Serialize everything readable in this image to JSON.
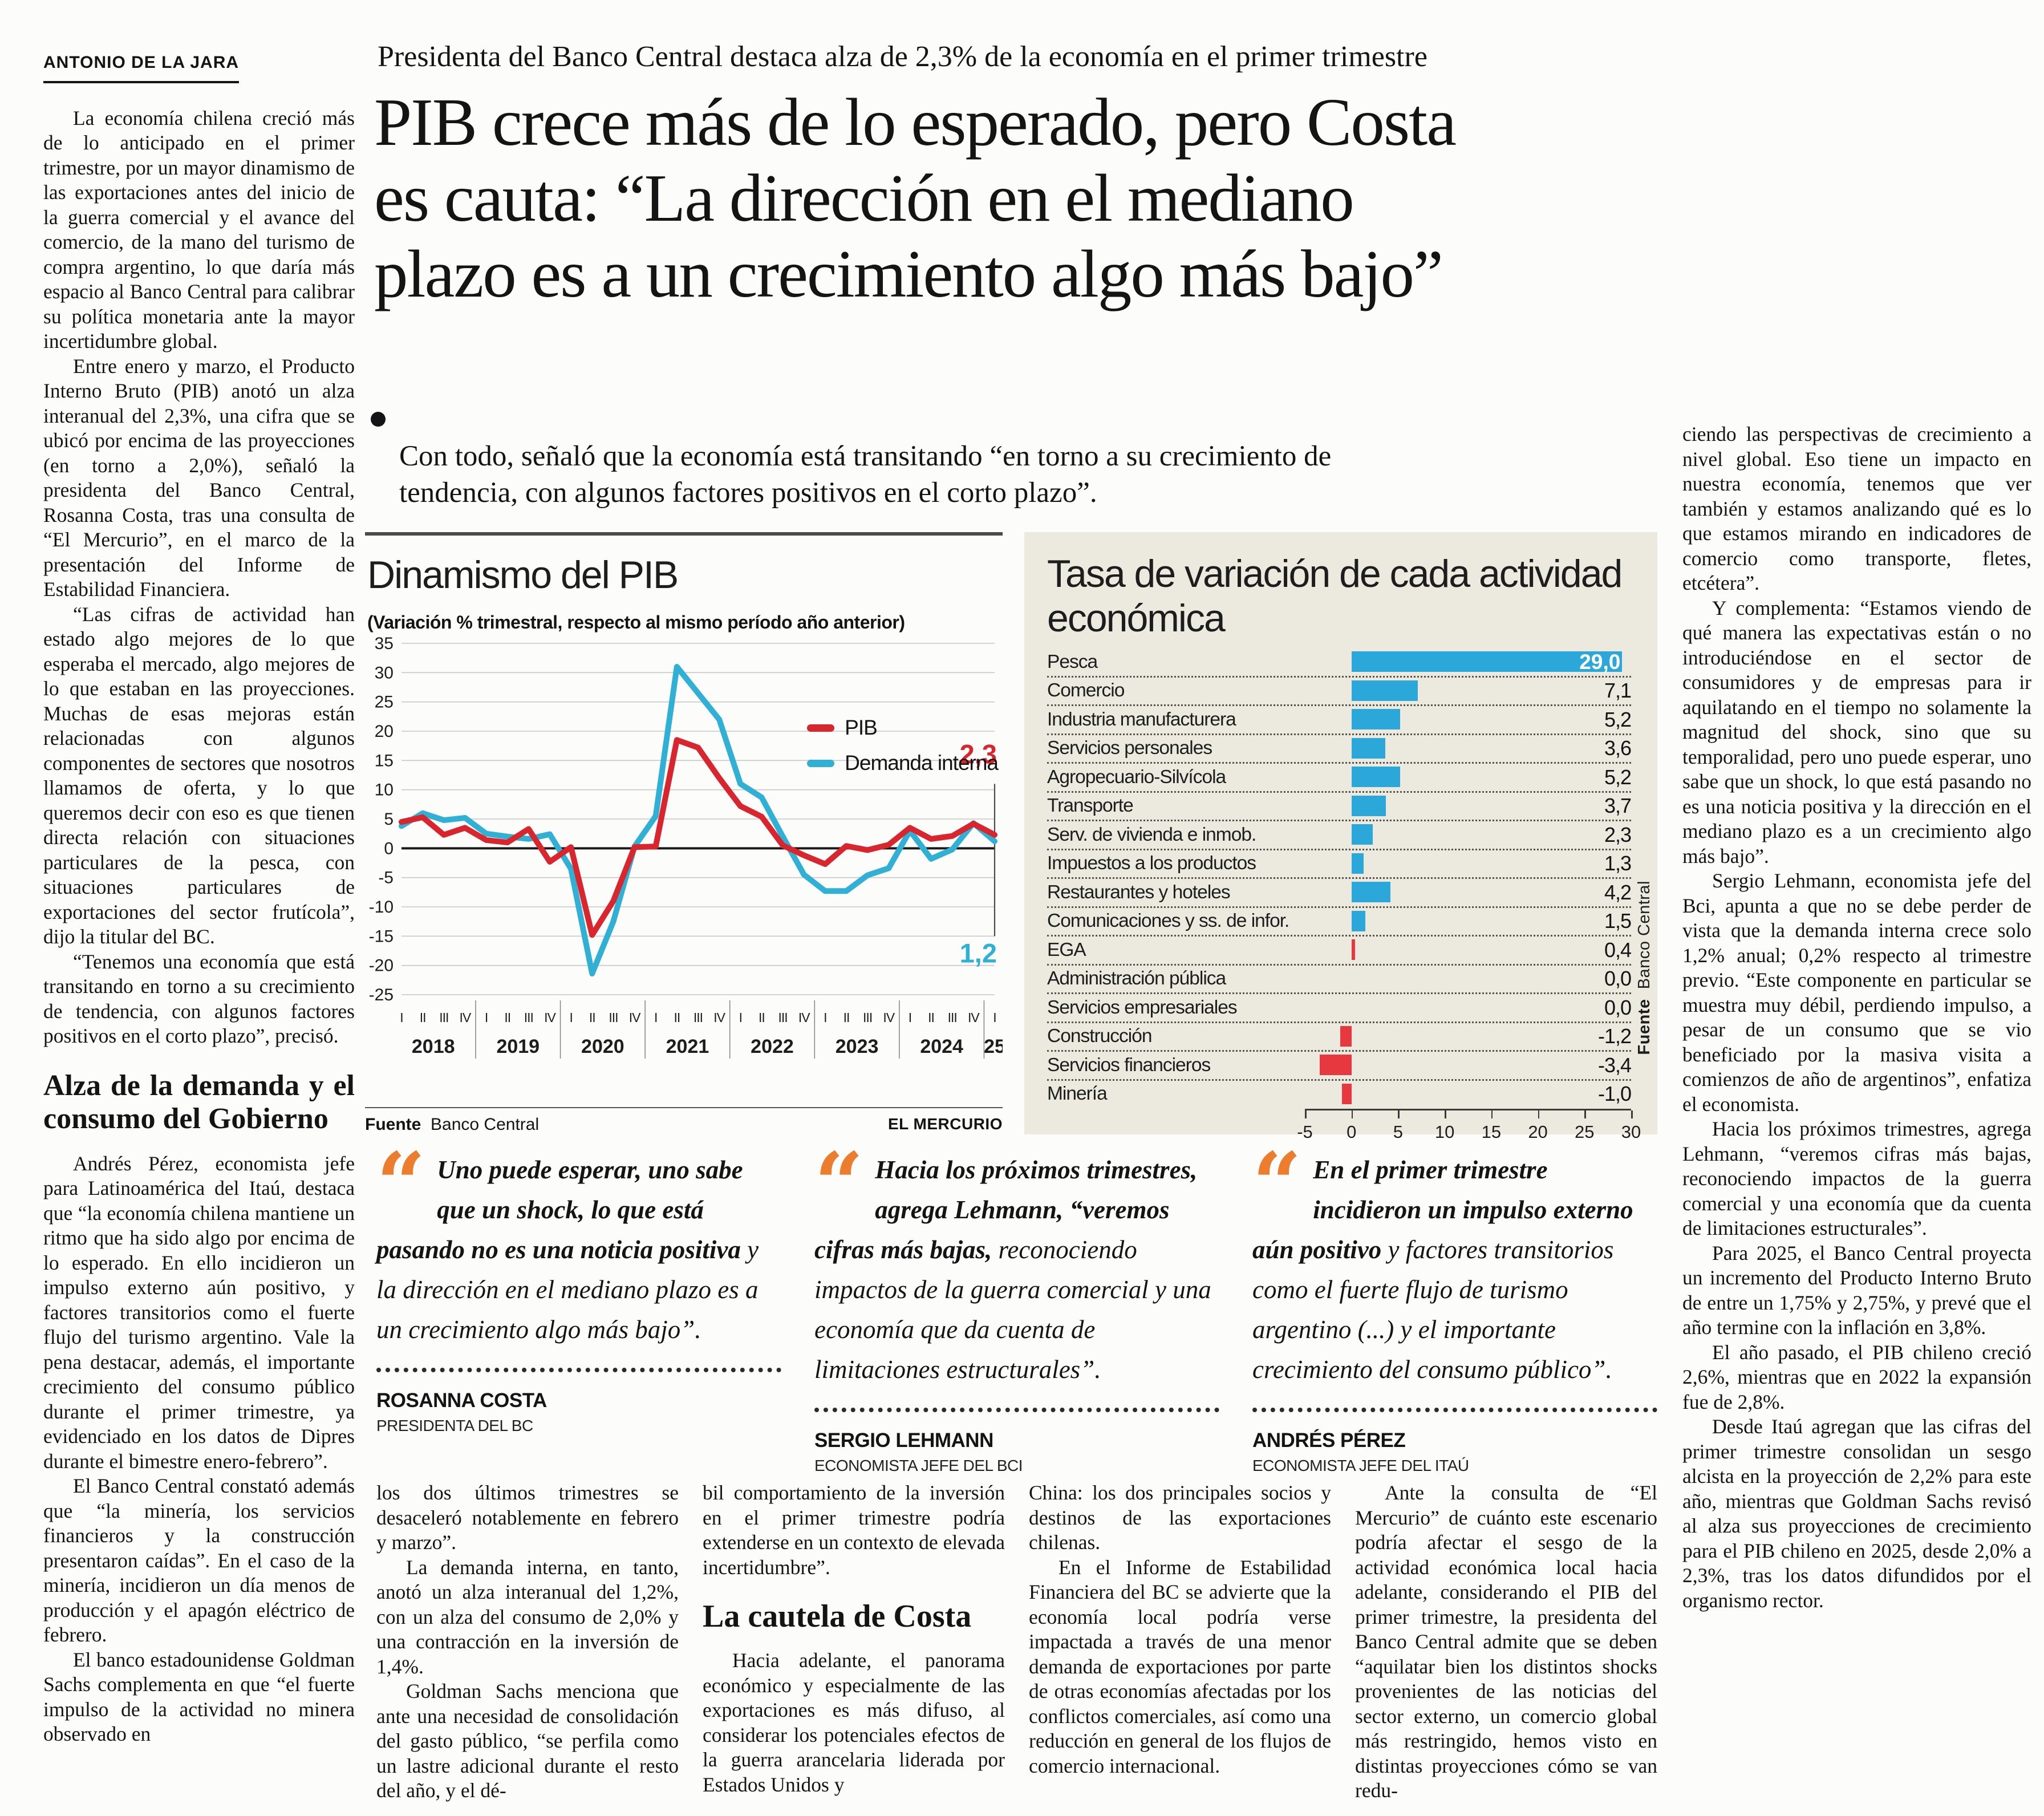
{
  "byline": "ANTONIO DE LA JARA",
  "header": {
    "kicker": "Presidenta del Banco Central destaca alza de 2,3% de la economía en el primer trimestre",
    "headline_lines": [
      "PIB crece más de lo esperado, pero Costa",
      "es cauta: “La dirección en el mediano",
      "plazo es a un crecimiento algo más bajo”"
    ],
    "subtitle": "Con todo, señaló que la economía está transitando “en torno a su crecimiento de tendencia, con algunos factores positivos en el corto plazo”."
  },
  "left_column": {
    "paras_before": [
      "La economía chilena creció más de lo anticipado en el primer trimestre, por un mayor dinamismo de las exportaciones antes del inicio de la guerra comercial y el avance del comercio, de la mano del turismo de compra argentino, lo que daría más espacio al Banco Central para calibrar su política monetaria ante la mayor incertidumbre global.",
      "Entre enero y marzo, el Producto Interno Bruto (PIB) anotó un alza interanual del 2,3%, una cifra que se ubicó por encima de las proyecciones (en torno a 2,0%), señaló la presidenta del Banco Central, Rosanna Costa, tras una consulta de “El Mercurio”, en el marco de la presentación del Informe de Estabilidad Financiera.",
      "“Las cifras de actividad han estado algo mejores de lo que esperaba el mercado, algo mejores de lo que estaban en las proyecciones. Muchas de esas mejoras están relacionadas con algunos componentes de sectores que nosotros llamamos de oferta, y lo que queremos decir con eso es que tienen directa relación con situaciones particulares de la pesca, con situaciones particulares de exportaciones del sector frutícola”, dijo la titular del BC.",
      "“Tenemos una economía que está transitando en torno a su crecimiento de tendencia, con algunos factores positivos en el corto plazo”, precisó."
    ],
    "subhead": "Alza de la demanda y el consumo del Gobierno",
    "paras_after": [
      "Andrés Pérez, economista jefe para Latinoamérica del Itaú, destaca que “la economía chilena mantiene un ritmo que ha sido algo por encima de lo esperado. En ello incidieron un impulso externo aún positivo, y factores transitorios como el fuerte flujo del turismo argentino. Vale la pena destacar, además, el importante crecimiento del consumo público durante el primer trimestre, ya evidenciado en los datos de Dipres durante el bimestre enero-febrero”.",
      "El Banco Central constató además que “la minería, los servicios financieros y la construcción presentaron caídas”. En el caso de la minería, incidieron un día menos de producción y el apagón eléctrico de febrero.",
      "El banco estadounidense Goldman Sachs complementa en que “el fuerte impulso de la actividad no minera observado en"
    ]
  },
  "chart_data": [
    {
      "type": "line",
      "title": "Dinamismo del PIB",
      "subtitle": "(Variación % trimestral, respecto al mismo período año anterior)",
      "ylim": [
        -25,
        35
      ],
      "ytick_step": 5,
      "grid": true,
      "legend_position": "top-right",
      "quarters": [
        "I",
        "II",
        "III",
        "IV",
        "I",
        "II",
        "III",
        "IV",
        "I",
        "II",
        "III",
        "IV",
        "I",
        "II",
        "III",
        "IV",
        "I",
        "II",
        "III",
        "IV",
        "I",
        "II",
        "III",
        "IV",
        "I",
        "II",
        "III",
        "IV",
        "I"
      ],
      "year_groups": [
        {
          "label": "2018",
          "start": 0,
          "end": 3
        },
        {
          "label": "2019",
          "start": 4,
          "end": 7
        },
        {
          "label": "2020",
          "start": 8,
          "end": 11
        },
        {
          "label": "2021",
          "start": 12,
          "end": 15
        },
        {
          "label": "2022",
          "start": 16,
          "end": 19
        },
        {
          "label": "2023",
          "start": 20,
          "end": 23
        },
        {
          "label": "2024",
          "start": 24,
          "end": 27
        },
        {
          "label": "25",
          "start": 28,
          "end": 28
        }
      ],
      "series": [
        {
          "name": "PIB",
          "color": "#d8252e",
          "values": [
            4.5,
            5.3,
            2.3,
            3.5,
            1.4,
            1.0,
            3.3,
            -2.3,
            0.2,
            -14.8,
            -9.0,
            0.2,
            0.3,
            18.5,
            17.2,
            12.0,
            7.2,
            5.4,
            0.5,
            -1.2,
            -2.7,
            0.4,
            -0.3,
            0.6,
            3.5,
            1.6,
            2.1,
            4.2,
            2.3
          ]
        },
        {
          "name": "Demanda interna",
          "color": "#2fb0d4",
          "values": [
            3.8,
            6.0,
            4.8,
            5.2,
            2.5,
            2.0,
            1.6,
            2.4,
            -3.5,
            -21.4,
            -12.5,
            0.3,
            5.5,
            31.0,
            26.5,
            22.0,
            11.0,
            8.7,
            2.0,
            -4.5,
            -7.3,
            -7.3,
            -4.6,
            -3.4,
            3.0,
            -1.8,
            -0.2,
            4.3,
            1.2
          ]
        }
      ],
      "end_labels": [
        {
          "text": "2,3",
          "color": "#d8252e",
          "value": 14.5
        },
        {
          "text": "1,2",
          "color": "#2fb0d4",
          "value": -19.5
        }
      ],
      "source_label": "Fuente",
      "source": "Banco Central",
      "credit": "EL MERCURIO"
    },
    {
      "type": "bar",
      "title": "Tasa de variación de cada actividad económica",
      "xlim": [
        -5,
        30
      ],
      "xticks": [
        -5,
        0,
        5,
        10,
        15,
        20,
        25,
        30
      ],
      "positive_color": "#2ba7d9",
      "negative_color": "#e8383f",
      "rows": [
        {
          "label": "Pesca",
          "value": 29.0,
          "value_label": "29,0",
          "value_inside": true
        },
        {
          "label": "Comercio",
          "value": 7.1,
          "value_label": "7,1"
        },
        {
          "label": "Industria manufacturera",
          "value": 5.2,
          "value_label": "5,2"
        },
        {
          "label": "Servicios personales",
          "value": 3.6,
          "value_label": "3,6"
        },
        {
          "label": "Agropecuario-Silvícola",
          "value": 5.2,
          "value_label": "5,2"
        },
        {
          "label": "Transporte",
          "value": 3.7,
          "value_label": "3,7"
        },
        {
          "label": "Serv. de vivienda e inmob.",
          "value": 2.3,
          "value_label": "2,3"
        },
        {
          "label": "Impuestos a los productos",
          "value": 1.3,
          "value_label": "1,3"
        },
        {
          "label": "Restaurantes y hoteles",
          "value": 4.2,
          "value_label": "4,2"
        },
        {
          "label": "Comunicaciones y ss. de infor.",
          "value": 1.5,
          "value_label": "1,5"
        },
        {
          "label": "EGA",
          "value": 0.4,
          "value_label": "0,4",
          "color": "#e8383f"
        },
        {
          "label": "Administración pública",
          "value": 0.0,
          "value_label": "0,0"
        },
        {
          "label": "Servicios empresariales",
          "value": 0.0,
          "value_label": "0,0"
        },
        {
          "label": "Construcción",
          "value": -1.2,
          "value_label": "-1,2"
        },
        {
          "label": "Servicios financieros",
          "value": -3.4,
          "value_label": "-3,4"
        },
        {
          "label": "Minería",
          "value": -1.0,
          "value_label": "-1,0"
        }
      ],
      "source_label": "Fuente",
      "source": "Banco Central"
    }
  ],
  "quotes": [
    {
      "glyph": "“",
      "lead": "Uno puede esperar, uno sabe que un shock, lo que está pasando no es una noticia positiva",
      "rest": " y la dirección en el mediano plazo es a un crecimiento algo más bajo”.",
      "name": "ROSANNA COSTA",
      "role": "PRESIDENTA DEL BC"
    },
    {
      "glyph": "“",
      "lead": "Hacia los próximos trimestres, agrega Lehmann, “veremos cifras más bajas,",
      "rest": " reconociendo impactos de la guerra comercial y una economía que da cuenta de limitaciones estructurales”.",
      "name": "SERGIO LEHMANN",
      "role": "ECONOMISTA JEFE DEL BCI"
    },
    {
      "glyph": "“",
      "lead": "En el primer trimestre incidieron un impulso externo aún positivo",
      "rest": " y factores transitorios como el fuerte flujo de turismo argentino (...) y el importante crecimiento del consumo público”.",
      "name": "ANDRÉS PÉREZ",
      "role": "ECONOMISTA JEFE DEL ITAÚ"
    }
  ],
  "bottom_columns": {
    "col1": {
      "paras": [
        "los dos últimos trimestres se desaceleró notablemente en febrero y marzo”.",
        "La demanda interna, en tanto, anotó un alza interanual del 1,2%, con un alza del consumo de 2,0% y una contracción en la inversión de 1,4%.",
        "Goldman Sachs menciona que ante una necesidad de consolidación del gasto público, “se perfila como un lastre adicional durante el resto del año, y el dé-"
      ]
    },
    "col2": {
      "para1": "bil comportamiento de la inversión en el primer trimestre podría extenderse en un contexto de elevada incertidumbre”.",
      "subhead": "La cautela de Costa",
      "para2": "Hacia adelante, el panorama económico y especialmente de las exportaciones es más difuso, al considerar los potenciales efectos de la guerra arancelaria liderada por Estados Unidos y"
    },
    "col3": {
      "paras": [
        "China: los dos principales socios y destinos de las exportaciones chilenas.",
        "En el Informe de Estabilidad Financiera del BC se advierte que la economía local podría verse impactada a través de una menor demanda de exportaciones por parte de otras economías afectadas por los conflictos comerciales, así como una reducción en general de los flujos de comercio internacional."
      ]
    },
    "col4": {
      "paras": [
        "Ante la consulta de “El Mercurio” de cuánto este escenario podría afectar el sesgo de la actividad económica local hacia adelante, considerando el PIB del primer trimestre, la presidenta del Banco Central admite que se deben “aquilatar bien los distintos shocks provenientes de las noticias del sector externo, un comercio global más restringido, hemos visto en distintas proyecciones cómo se van redu-"
      ]
    }
  },
  "right_column": {
    "paras": [
      "ciendo las perspectivas de crecimiento a nivel global. Eso tiene un impacto en nuestra economía, tenemos que ver también y estamos analizando qué es lo que estamos mirando en indicadores de comercio como transporte, fletes, etcétera”.",
      "Y complementa: “Estamos viendo de qué manera las expectativas están o no introduciéndose en el sector de consumidores y de empresas para ir aquilatando en el tiempo no solamente la magnitud del shock, sino que su temporalidad, pero uno puede esperar, uno sabe que un shock, lo que está pasando no es una noticia positiva y la dirección en el mediano plazo es a un crecimiento algo más bajo”.",
      "Sergio Lehmann, economista jefe del Bci, apunta a que no se debe perder de vista que la demanda interna crece solo 1,2% anual; 0,2% respecto al trimestre previo. “Este componente en particular se muestra muy débil, perdiendo impulso, a pesar de un consumo que se vio beneficiado por la masiva visita a comienzos de año de argentinos”, enfatiza el economista.",
      "Hacia los próximos trimestres, agrega Lehmann, “veremos cifras más bajas, reconociendo impactos de la guerra comercial y una economía que da cuenta de limitaciones estructurales”.",
      "Para 2025, el Banco Central proyecta un incremento del Producto Interno Bruto de entre un 1,75% y 2,75%, y prevé que el año termine con la inflación en 3,8%.",
      "El año pasado, el PIB chileno creció 2,6%, mientras que en 2022 la expansión fue de 2,8%.",
      "Desde Itaú agregan que las cifras del primer trimestre consolidan un sesgo alcista en la proyección de 2,2% para este año, mientras que Goldman Sachs revisó al alza sus proyecciones de crecimiento para el PIB chileno en 2025, desde 2,0% a 2,3%, tras los datos difundidos por el organismo rector."
    ]
  }
}
